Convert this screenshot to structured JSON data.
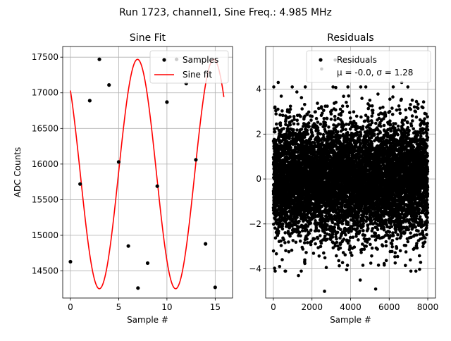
{
  "figure": {
    "suptitle": "Run 1723, channel1, Sine Freq.: 4.985 MHz"
  },
  "colors": {
    "samples": "#000000",
    "fit": "#ff0000",
    "grid": "#b0b0b0"
  },
  "chart_data": [
    {
      "type": "line",
      "title": "Sine Fit",
      "xlabel": "Sample #",
      "ylabel": "ADC Counts",
      "xlim": [
        -0.8,
        16.8
      ],
      "ylim": [
        14120,
        17650
      ],
      "xticks": [
        0,
        5,
        10,
        15
      ],
      "yticks": [
        14500,
        15000,
        15500,
        16000,
        16500,
        17000,
        17500
      ],
      "grid": true,
      "legend": {
        "location": "top-right",
        "entries": [
          "Samples",
          "Sine fit"
        ]
      },
      "series": [
        {
          "name": "Samples",
          "style": "scatter",
          "x": [
            0,
            1,
            2,
            3,
            4,
            5,
            6,
            7,
            8,
            9,
            10,
            11,
            12,
            13,
            14,
            15
          ],
          "y": [
            14630,
            15720,
            16890,
            17470,
            17110,
            16030,
            14850,
            14260,
            14610,
            15690,
            16870,
            17470,
            17130,
            16060,
            14880,
            14270
          ]
        },
        {
          "name": "Sine fit",
          "style": "line",
          "model": {
            "offset": 15860,
            "amplitude": 1610,
            "period": 7.9,
            "x_start": 0,
            "x_end": 15.9
          }
        }
      ]
    },
    {
      "type": "scatter",
      "title": "Residuals",
      "xlabel": "Sample #",
      "ylabel": "",
      "xlim": [
        -400,
        8400
      ],
      "ylim": [
        -5.3,
        5.9
      ],
      "xticks": [
        0,
        2000,
        4000,
        6000,
        8000
      ],
      "yticks": [
        -4,
        -2,
        0,
        2,
        4
      ],
      "grid": true,
      "legend": {
        "location": "top-right",
        "entries": [
          "Residuals",
          "μ = -0.0, σ = 1.28"
        ]
      },
      "stats": {
        "mean": -0.0,
        "sigma": 1.28,
        "n": 8000
      },
      "outliers": [
        {
          "x": 2500,
          "y": 4.9
        },
        {
          "x": 3200,
          "y": 5.3
        },
        {
          "x": 2650,
          "y": -5.0
        },
        {
          "x": 5300,
          "y": -4.9
        },
        {
          "x": 1300,
          "y": -4.3
        },
        {
          "x": 4500,
          "y": -4.5
        },
        {
          "x": 6650,
          "y": 4.3
        },
        {
          "x": 250,
          "y": 4.3
        }
      ]
    }
  ]
}
